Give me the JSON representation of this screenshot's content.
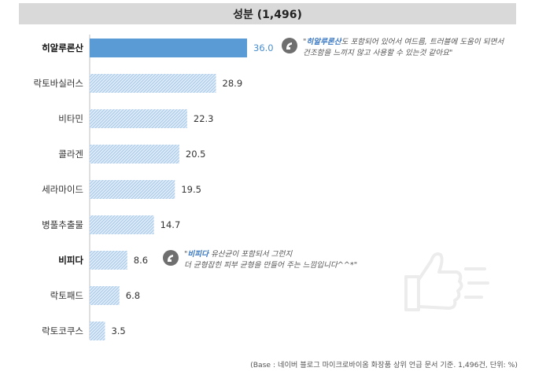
{
  "chart_data": {
    "type": "bar",
    "orientation": "horizontal",
    "title": "성분 (1,496)",
    "categories": [
      "히알루론산",
      "락토바실러스",
      "비타민",
      "콜라겐",
      "세라마이드",
      "병풀추출물",
      "비피다",
      "락토패드",
      "락토코쿠스"
    ],
    "values": [
      36.0,
      28.9,
      22.3,
      20.5,
      19.5,
      14.7,
      8.6,
      6.8,
      3.5
    ],
    "value_labels": [
      "36.0",
      "28.9",
      "22.3",
      "20.5",
      "19.5",
      "14.7",
      "8.6",
      "6.8",
      "3.5"
    ],
    "highlighted": [
      "히알루론산",
      "비피다"
    ],
    "xlim": [
      0,
      40
    ],
    "grid": false,
    "legend": "none"
  },
  "colors": {
    "highlight_bar": "#5b9bd5",
    "pattern_bar": "#a9cbea",
    "pattern_bg": "#e4eef8",
    "highlight_value": "#4a8fd0",
    "quote_keyword": "#3a78c2",
    "title_bg": "#d9d9d9"
  },
  "quotes": [
    {
      "keyword": "히알루론산",
      "line1_prefix": "\"",
      "line1_rest": "도 포함되어 있어서 여드름, 트러블에 도움이 되면서",
      "line2": "건조함을 느끼지 않고 사용할 수 있는것 같아요\"",
      "icon": "quote-bubble-icon"
    },
    {
      "keyword": "비피다",
      "line1_prefix": "\"",
      "line1_rest": " 유산균이 포함되서 그런지",
      "line2": "더 균형잡힌 피부 균형을 만들어 주는 느낌입니다^^*\"",
      "icon": "quote-bubble-icon"
    }
  ],
  "watermark_icon": "thumbs-up-icon",
  "footnote": "(Base : 네이버 블로그 마이크로바이옴 화장품 상위 언급 문서 기준. 1,496건, 단위: %)"
}
